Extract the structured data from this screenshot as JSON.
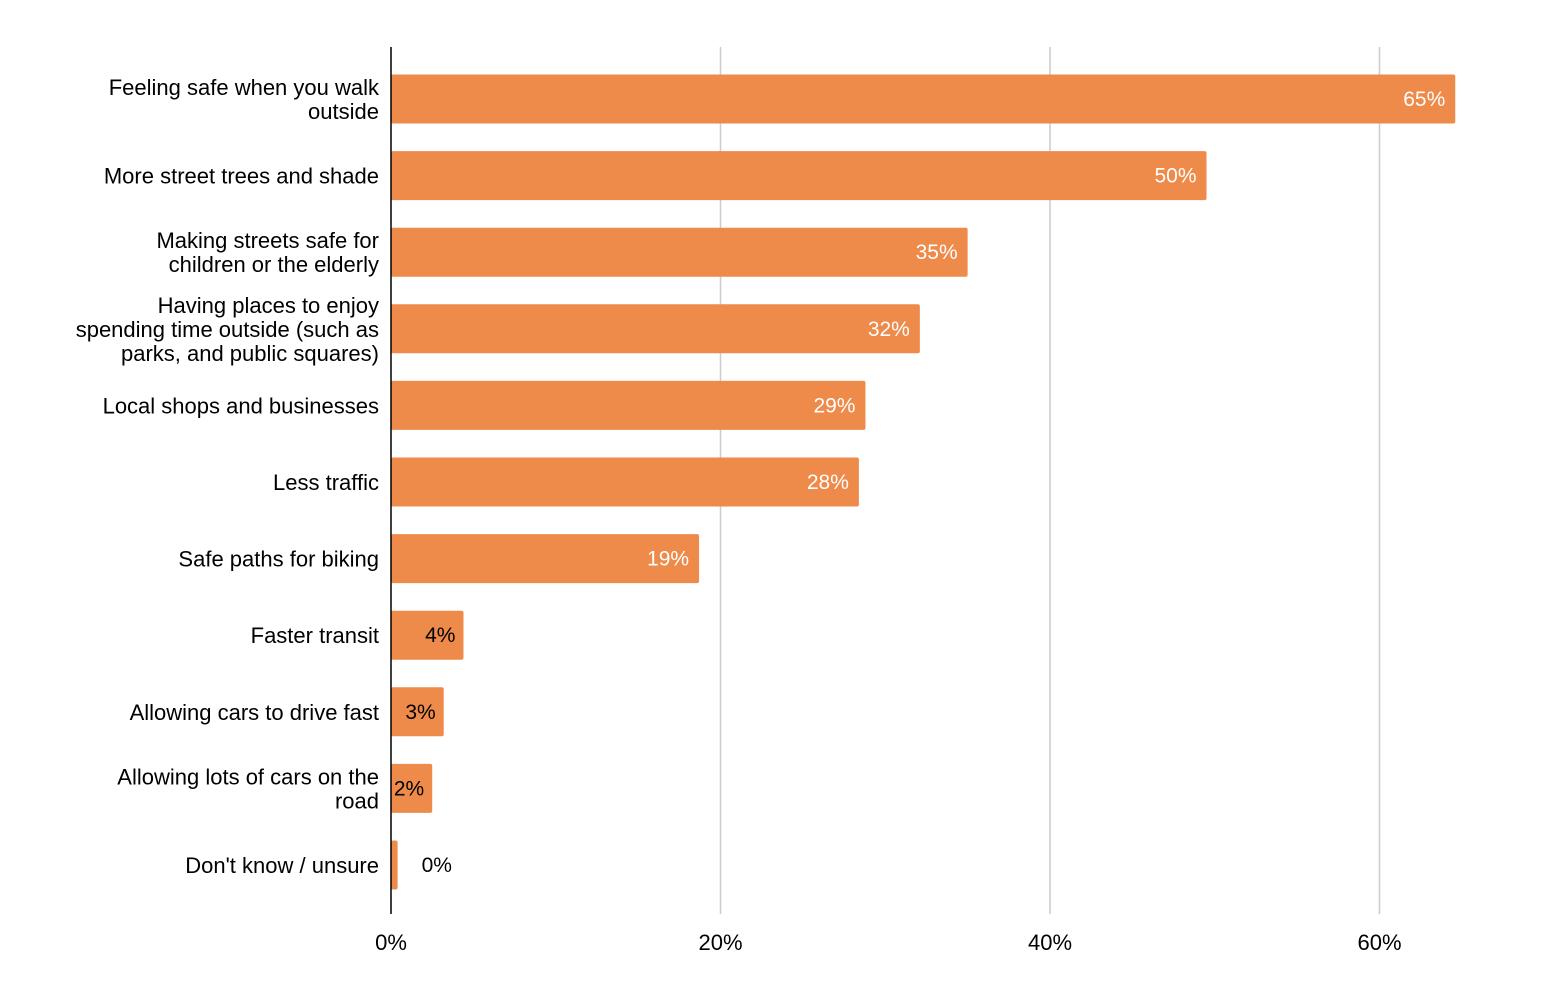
{
  "chart_data": {
    "type": "bar",
    "orientation": "horizontal",
    "title": "",
    "xlabel": "",
    "ylabel": "",
    "categories": [
      [
        "Feeling safe when you walk",
        "outside"
      ],
      [
        "More street trees and shade"
      ],
      [
        "Making streets safe for",
        "children or the elderly"
      ],
      [
        "Having places to enjoy",
        "spending time outside (such as",
        "parks, and public squares)"
      ],
      [
        "Local shops and businesses"
      ],
      [
        "Less traffic"
      ],
      [
        "Safe paths for biking"
      ],
      [
        "Faster transit"
      ],
      [
        "Allowing cars to drive fast"
      ],
      [
        "Allowing lots of cars on the",
        "road"
      ],
      [
        "Don't know / unsure"
      ]
    ],
    "values": [
      64.6,
      49.5,
      35.0,
      32.1,
      28.8,
      28.4,
      18.7,
      4.4,
      3.2,
      2.5,
      0.4
    ],
    "data_labels": [
      "65%",
      "50%",
      "35%",
      "32%",
      "29%",
      "28%",
      "19%",
      "4%",
      "3%",
      "2%",
      "0%"
    ],
    "xlim": [
      0,
      70
    ],
    "x_ticks": [
      0,
      20,
      40,
      60
    ],
    "x_tick_labels": [
      "0%",
      "20%",
      "40%",
      "60%"
    ],
    "grid": "vertical",
    "legend": "none",
    "bar_color": "#EE8A4A",
    "label_color_inside": "#ffffff",
    "label_color_small": "#000000",
    "grid_color": "#cccccc",
    "axis_color": "#000000"
  }
}
